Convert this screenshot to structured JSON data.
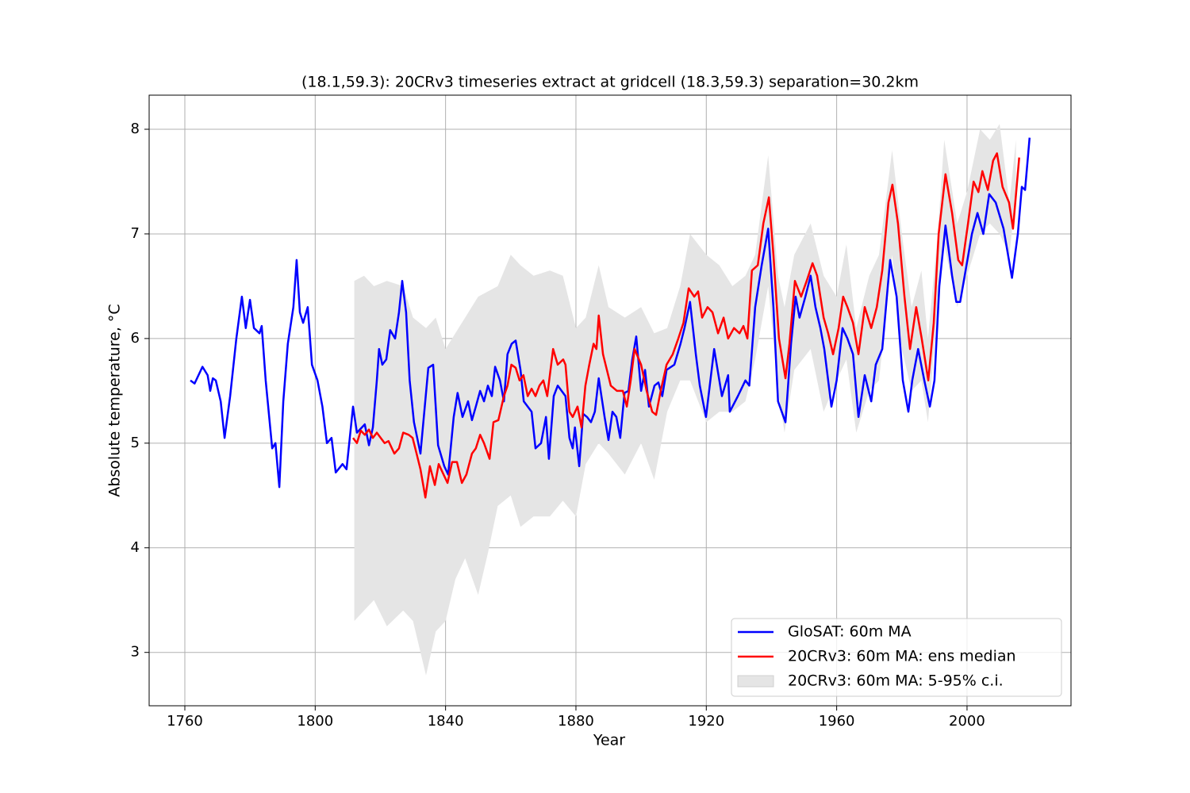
{
  "chart_data": {
    "type": "line",
    "title": "(18.1,59.3): 20CRv3 timeseries extract at gridcell (18.3,59.3) separation=30.2km",
    "x_label": "Year",
    "y_label": "Absolute temperature, °C",
    "xlim": [
      1749.05,
      2031.9
    ],
    "ylim": [
      2.49,
      8.326
    ],
    "xticks": [
      1760,
      1800,
      1840,
      1880,
      1920,
      1960,
      2000
    ],
    "yticks": [
      3,
      4,
      5,
      6,
      7,
      8
    ],
    "grid": true,
    "legend": "lower right",
    "series": [
      {
        "name": "GloSAT: 60m MA",
        "color": "#0000ff",
        "type": "line",
        "x": [
          1761.7,
          1763,
          1765.4,
          1767,
          1767.8,
          1768.6,
          1769.5,
          1771,
          1772.2,
          1773.9,
          1775.8,
          1777.5,
          1778.7,
          1780,
          1781.2,
          1782.9,
          1783.6,
          1784.8,
          1786.8,
          1787.8,
          1789,
          1790.2,
          1791.6,
          1793.3,
          1794.3,
          1795.3,
          1796.3,
          1797.7,
          1799,
          1800.7,
          1802.2,
          1803.6,
          1805,
          1806.3,
          1808.4,
          1809.6,
          1811.6,
          1812.8,
          1815.2,
          1816.5,
          1817.7,
          1818.9,
          1819.6,
          1820.6,
          1821.8,
          1823,
          1824.5,
          1825.7,
          1826.7,
          1827.9,
          1829,
          1830.3,
          1832.3,
          1834.7,
          1836.2,
          1837.7,
          1839.6,
          1840.8,
          1842.5,
          1843.7,
          1845.2,
          1846.9,
          1848.1,
          1849.3,
          1850.6,
          1851.8,
          1853,
          1854.2,
          1855.2,
          1856.7,
          1857.9,
          1859,
          1860.3,
          1861.5,
          1863,
          1864,
          1865.2,
          1866.4,
          1867.6,
          1869.3,
          1870.8,
          1871.7,
          1873.2,
          1874.4,
          1875.6,
          1876.8,
          1878,
          1879,
          1879.7,
          1881,
          1882.2,
          1883.4,
          1884.6,
          1885.8,
          1887,
          1888.8,
          1890,
          1891.2,
          1892.4,
          1893.6,
          1894.9,
          1896.1,
          1897.3,
          1898.5,
          1900,
          1901.2,
          1902.4,
          1904.1,
          1905.3,
          1906.5,
          1907.8,
          1910.2,
          1912.1,
          1913.3,
          1915,
          1916.8,
          1918,
          1919.9,
          1922.4,
          1924.8,
          1926.7,
          1927.2,
          1929.7,
          1932,
          1933.2,
          1935,
          1937,
          1939,
          1940.6,
          1942,
          1944.3,
          1946,
          1947.4,
          1948.6,
          1950.4,
          1952,
          1953.5,
          1955,
          1956.2,
          1958.4,
          1960,
          1961.8,
          1963.3,
          1965,
          1966.7,
          1968.6,
          1970.6,
          1972,
          1974,
          1976.4,
          1978.4,
          1980.3,
          1982,
          1983.2,
          1985,
          1986.9,
          1988.6,
          1990,
          1991.5,
          1993.4,
          1995.4,
          1996.7,
          1997.9,
          2001.5,
          2003.2,
          2005,
          2006.8,
          2008.8,
          2011.2,
          2013.8,
          2015.6,
          2016.8,
          2017.8,
          2019.2
        ],
        "values": [
          5.6,
          5.57,
          5.73,
          5.65,
          5.5,
          5.62,
          5.6,
          5.4,
          5.05,
          5.45,
          6.0,
          6.4,
          6.1,
          6.37,
          6.1,
          6.05,
          6.12,
          5.6,
          4.95,
          5.0,
          4.58,
          5.4,
          5.95,
          6.3,
          6.75,
          6.25,
          6.15,
          6.3,
          5.75,
          5.6,
          5.35,
          5.0,
          5.05,
          4.72,
          4.8,
          4.75,
          5.35,
          5.1,
          5.18,
          4.98,
          5.15,
          5.6,
          5.9,
          5.75,
          5.8,
          6.08,
          6.0,
          6.25,
          6.55,
          6.25,
          5.6,
          5.2,
          4.9,
          5.72,
          5.75,
          4.98,
          4.78,
          4.7,
          5.25,
          5.48,
          5.25,
          5.4,
          5.22,
          5.35,
          5.5,
          5.4,
          5.55,
          5.45,
          5.73,
          5.6,
          5.4,
          5.85,
          5.95,
          5.98,
          5.7,
          5.4,
          5.35,
          5.3,
          4.95,
          5.0,
          5.25,
          4.85,
          5.45,
          5.55,
          5.5,
          5.45,
          5.05,
          4.95,
          5.15,
          4.78,
          5.28,
          5.25,
          5.2,
          5.3,
          5.62,
          5.25,
          5.03,
          5.3,
          5.25,
          5.05,
          5.48,
          5.5,
          5.8,
          6.02,
          5.5,
          5.7,
          5.35,
          5.55,
          5.58,
          5.45,
          5.7,
          5.75,
          5.95,
          6.1,
          6.35,
          5.85,
          5.55,
          5.25,
          5.9,
          5.45,
          5.65,
          5.3,
          5.45,
          5.6,
          5.55,
          6.3,
          6.7,
          7.05,
          6.3,
          5.4,
          5.2,
          5.95,
          6.4,
          6.2,
          6.4,
          6.6,
          6.3,
          6.1,
          5.9,
          5.35,
          5.6,
          6.1,
          6.0,
          5.85,
          5.25,
          5.65,
          5.4,
          5.75,
          5.9,
          6.75,
          6.4,
          5.6,
          5.3,
          5.6,
          5.9,
          5.6,
          5.35,
          5.6,
          6.5,
          7.08,
          6.6,
          6.35,
          6.35,
          7.0,
          7.2,
          7.0,
          7.38,
          7.3,
          7.05,
          6.58,
          7.0,
          7.45,
          7.42,
          7.92
        ]
      },
      {
        "name": "20CRv3: 60m MA: ens median",
        "color": "#ff0000",
        "type": "line",
        "x": [
          1811.6,
          1812.8,
          1814,
          1815.2,
          1816.5,
          1817.7,
          1818.9,
          1820.1,
          1821.3,
          1822.5,
          1824.3,
          1825.7,
          1827,
          1828.7,
          1829.9,
          1831.1,
          1832.3,
          1833.8,
          1835.2,
          1836.7,
          1837.9,
          1839.1,
          1840.6,
          1842,
          1843.5,
          1845,
          1846.4,
          1848.1,
          1849.3,
          1850.6,
          1851.8,
          1853.5,
          1854.7,
          1856.2,
          1857.9,
          1859,
          1860.2,
          1861.5,
          1862.7,
          1863.9,
          1865.2,
          1866.4,
          1867.6,
          1868.8,
          1870,
          1871.2,
          1873,
          1874.4,
          1876.1,
          1876.8,
          1878,
          1879,
          1880.5,
          1881.7,
          1882.9,
          1884.1,
          1885.4,
          1886.3,
          1887,
          1888.3,
          1889.5,
          1890.7,
          1892.6,
          1894.4,
          1895.6,
          1896.8,
          1898,
          1900,
          1901.7,
          1903.4,
          1904.6,
          1906,
          1907.8,
          1909.7,
          1911.4,
          1913,
          1914.6,
          1916.3,
          1917.5,
          1918.7,
          1920.4,
          1921.9,
          1923.6,
          1925.3,
          1926.7,
          1928.5,
          1930.2,
          1931.4,
          1932.6,
          1934,
          1935.8,
          1937.5,
          1939.2,
          1940.6,
          1942.3,
          1944.3,
          1945.5,
          1947.2,
          1949.1,
          1950.8,
          1952.6,
          1954,
          1956,
          1957.4,
          1958.9,
          1960.6,
          1962,
          1963.3,
          1965,
          1966.7,
          1968.6,
          1970.6,
          1972.3,
          1974,
          1975.9,
          1977.1,
          1978.8,
          1980.8,
          1982.5,
          1984.4,
          1986.1,
          1988.1,
          1989.8,
          1991.3,
          1993.4,
          1995.4,
          1997.3,
          1998.5,
          2000.3,
          2002,
          2003.5,
          2004.7,
          2006.4,
          2008,
          2009.2,
          2010.9,
          2012.9,
          2014.1,
          2016
        ],
        "values": [
          5.05,
          5.0,
          5.12,
          5.08,
          5.13,
          5.05,
          5.1,
          5.05,
          5.0,
          5.02,
          4.9,
          4.95,
          5.1,
          5.08,
          5.05,
          4.9,
          4.75,
          4.48,
          4.78,
          4.6,
          4.8,
          4.72,
          4.62,
          4.82,
          4.82,
          4.62,
          4.7,
          4.9,
          4.95,
          5.08,
          5.0,
          4.85,
          5.2,
          5.22,
          5.45,
          5.55,
          5.75,
          5.72,
          5.6,
          5.65,
          5.45,
          5.52,
          5.45,
          5.55,
          5.6,
          5.45,
          5.9,
          5.75,
          5.8,
          5.75,
          5.3,
          5.25,
          5.35,
          5.15,
          5.55,
          5.75,
          5.95,
          5.9,
          6.22,
          5.85,
          5.7,
          5.55,
          5.5,
          5.5,
          5.35,
          5.6,
          5.9,
          5.75,
          5.5,
          5.3,
          5.27,
          5.5,
          5.75,
          5.85,
          6.0,
          6.15,
          6.48,
          6.4,
          6.45,
          6.2,
          6.3,
          6.25,
          6.05,
          6.2,
          6.0,
          6.1,
          6.05,
          6.12,
          6.0,
          6.65,
          6.7,
          7.1,
          7.35,
          6.8,
          6.0,
          5.62,
          5.95,
          6.55,
          6.4,
          6.55,
          6.72,
          6.6,
          6.2,
          6.05,
          5.85,
          6.1,
          6.4,
          6.3,
          6.15,
          5.85,
          6.3,
          6.1,
          6.3,
          6.65,
          7.3,
          7.47,
          7.1,
          6.4,
          5.9,
          6.3,
          6.0,
          5.6,
          6.15,
          7.0,
          7.57,
          7.2,
          6.75,
          6.7,
          7.1,
          7.5,
          7.4,
          7.6,
          7.42,
          7.7,
          7.77,
          7.45,
          7.3,
          7.05,
          7.73
        ]
      },
      {
        "name": "20CRv3: 60m MA: 5-95% c.i.",
        "color": "#e5e5e5",
        "type": "band",
        "x": [
          1812,
          1815,
          1818,
          1822,
          1827,
          1830,
          1834,
          1837,
          1840,
          1843,
          1846,
          1850,
          1853,
          1856,
          1860,
          1863,
          1867,
          1872,
          1876,
          1880,
          1883,
          1887,
          1890,
          1895,
          1900,
          1904,
          1908,
          1912,
          1915,
          1920,
          1924,
          1928,
          1932,
          1935,
          1939,
          1942,
          1944,
          1947,
          1952,
          1956,
          1960,
          1963,
          1966,
          1970,
          1973,
          1977,
          1980,
          1983,
          1986,
          1988,
          1991,
          1993,
          1997,
          2000,
          2004,
          2007,
          2010,
          2013,
          2015
        ],
        "upper": [
          6.55,
          6.6,
          6.5,
          6.55,
          6.5,
          6.2,
          6.1,
          6.2,
          5.9,
          6.05,
          6.2,
          6.4,
          6.45,
          6.5,
          6.8,
          6.7,
          6.6,
          6.65,
          6.6,
          6.1,
          6.2,
          6.7,
          6.3,
          6.2,
          6.3,
          6.05,
          6.1,
          6.5,
          7.0,
          6.8,
          6.7,
          6.5,
          6.6,
          6.8,
          7.75,
          6.6,
          6.3,
          6.8,
          7.1,
          6.6,
          6.4,
          6.9,
          6.1,
          6.6,
          6.8,
          7.8,
          7.0,
          6.3,
          6.65,
          6.0,
          7.0,
          7.9,
          7.1,
          7.4,
          8.0,
          7.9,
          8.05,
          7.3,
          7.9
        ],
        "lower": [
          3.3,
          3.4,
          3.5,
          3.25,
          3.4,
          3.3,
          2.78,
          3.2,
          3.3,
          3.7,
          3.9,
          3.55,
          3.95,
          4.4,
          4.5,
          4.2,
          4.3,
          4.3,
          4.45,
          4.3,
          4.8,
          5.0,
          4.9,
          4.7,
          5.0,
          4.65,
          5.3,
          5.6,
          5.6,
          5.2,
          5.3,
          5.3,
          5.4,
          5.8,
          6.5,
          5.5,
          5.1,
          5.7,
          5.9,
          5.3,
          5.6,
          5.8,
          5.1,
          5.5,
          5.6,
          6.8,
          5.9,
          5.5,
          5.6,
          5.2,
          6.3,
          6.9,
          6.3,
          6.6,
          7.0,
          7.1,
          7.0,
          6.8,
          7.4
        ]
      }
    ]
  }
}
